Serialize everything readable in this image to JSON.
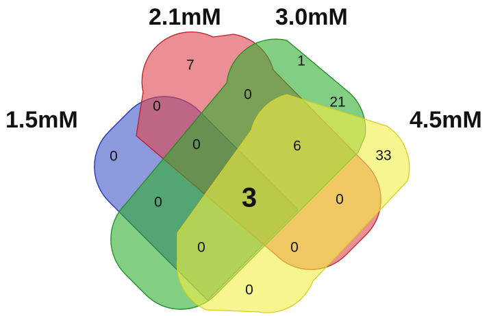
{
  "sets": [
    {
      "id": "s15",
      "label": "1.5mM",
      "fill": "#3f55c4",
      "stroke": "#1c2fae"
    },
    {
      "id": "s21",
      "label": "2.1mM",
      "fill": "#e0444c",
      "stroke": "#b81f2a"
    },
    {
      "id": "s30",
      "label": "3.0mM",
      "fill": "#2fae2f",
      "stroke": "#1f8c1f"
    },
    {
      "id": "s45",
      "label": "4.5mM",
      "fill": "#f2ef45",
      "stroke": "#d6cf1e"
    }
  ],
  "regions": [
    {
      "id": "only-21",
      "sets": [
        "2.1mM"
      ],
      "count": "7"
    },
    {
      "id": "only-30",
      "sets": [
        "3.0mM"
      ],
      "count": "1"
    },
    {
      "id": "only-15",
      "sets": [
        "1.5mM"
      ],
      "count": "0"
    },
    {
      "id": "only-45",
      "sets": [
        "4.5mM"
      ],
      "count": "33"
    },
    {
      "id": "15-21",
      "sets": [
        "1.5mM",
        "2.1mM"
      ],
      "count": "0"
    },
    {
      "id": "21-30",
      "sets": [
        "2.1mM",
        "3.0mM"
      ],
      "count": "0"
    },
    {
      "id": "30-45",
      "sets": [
        "3.0mM",
        "4.5mM"
      ],
      "count": "21"
    },
    {
      "id": "15-21-30",
      "sets": [
        "1.5mM",
        "2.1mM",
        "3.0mM"
      ],
      "count": "0"
    },
    {
      "id": "21-30-45",
      "sets": [
        "2.1mM",
        "3.0mM",
        "4.5mM"
      ],
      "count": "6"
    },
    {
      "id": "15-30",
      "sets": [
        "1.5mM",
        "3.0mM"
      ],
      "count": "0"
    },
    {
      "id": "all",
      "sets": [
        "1.5mM",
        "2.1mM",
        "3.0mM",
        "4.5mM"
      ],
      "count": "3"
    },
    {
      "id": "21-45",
      "sets": [
        "2.1mM",
        "4.5mM"
      ],
      "count": "0"
    },
    {
      "id": "15-30-45",
      "sets": [
        "1.5mM",
        "3.0mM",
        "4.5mM"
      ],
      "count": "0"
    },
    {
      "id": "15-21-45",
      "sets": [
        "1.5mM",
        "2.1mM",
        "4.5mM"
      ],
      "count": "0"
    },
    {
      "id": "15-45",
      "sets": [
        "1.5mM",
        "4.5mM"
      ],
      "count": "0"
    }
  ]
}
